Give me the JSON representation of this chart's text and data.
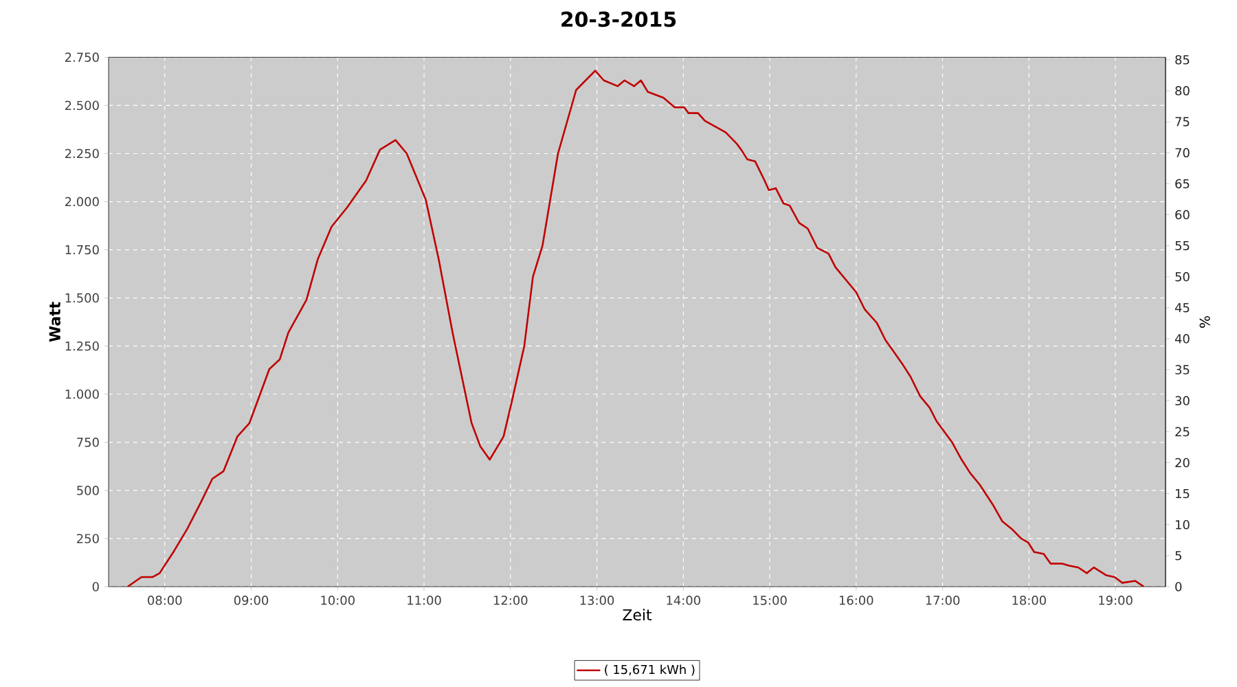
{
  "chart_data": {
    "type": "line",
    "title": "20-3-2015",
    "xlabel": "Zeit",
    "ylabel": "Watt",
    "y2label": "%",
    "xlim": [
      7.35,
      19.58
    ],
    "ylim": [
      0,
      2750
    ],
    "y2lim": [
      0,
      85.4
    ],
    "xticks": [
      {
        "value": 8,
        "label": "08:00"
      },
      {
        "value": 9,
        "label": "09:00"
      },
      {
        "value": 10,
        "label": "10:00"
      },
      {
        "value": 11,
        "label": "11:00"
      },
      {
        "value": 12,
        "label": "12:00"
      },
      {
        "value": 13,
        "label": "13:00"
      },
      {
        "value": 14,
        "label": "14:00"
      },
      {
        "value": 15,
        "label": "15:00"
      },
      {
        "value": 16,
        "label": "16:00"
      },
      {
        "value": 17,
        "label": "17:00"
      },
      {
        "value": 18,
        "label": "18:00"
      },
      {
        "value": 19,
        "label": "19:00"
      }
    ],
    "yticks": [
      0,
      250,
      500,
      750,
      {
        "value": 1000,
        "label": "1.000"
      },
      {
        "value": 1250,
        "label": "1.250"
      },
      {
        "value": 1500,
        "label": "1.500"
      },
      {
        "value": 1750,
        "label": "1.750"
      },
      {
        "value": 2000,
        "label": "2.000"
      },
      {
        "value": 2250,
        "label": "2.250"
      },
      {
        "value": 2500,
        "label": "2.500"
      },
      {
        "value": 2750,
        "label": "2.750"
      }
    ],
    "y2ticks": [
      0,
      5,
      10,
      15,
      20,
      25,
      30,
      35,
      40,
      45,
      50,
      55,
      60,
      65,
      70,
      75,
      80,
      85
    ],
    "grid": true,
    "legend": "bottom",
    "marker": "none",
    "line_style": "solid",
    "series": [
      {
        "name": "( 15,671 kWh )",
        "color": "#c00000",
        "x": [
          7.57,
          7.73,
          7.86,
          7.94,
          8.1,
          8.26,
          8.42,
          8.55,
          8.68,
          8.84,
          8.98,
          9.21,
          9.33,
          9.43,
          9.64,
          9.77,
          9.93,
          10.11,
          10.33,
          10.49,
          10.67,
          10.8,
          11.02,
          11.17,
          11.33,
          11.55,
          11.65,
          11.76,
          11.92,
          12.02,
          12.16,
          12.26,
          12.37,
          12.55,
          12.76,
          12.98,
          13.08,
          13.24,
          13.32,
          13.43,
          13.51,
          13.59,
          13.77,
          13.9,
          14.01,
          14.06,
          14.17,
          14.25,
          14.49,
          14.62,
          14.67,
          14.74,
          14.83,
          14.94,
          14.99,
          15.07,
          15.16,
          15.23,
          15.34,
          15.44,
          15.55,
          15.68,
          15.76,
          16.0,
          16.1,
          16.24,
          16.34,
          16.42,
          16.53,
          16.63,
          16.74,
          16.85,
          16.93,
          17.11,
          17.22,
          17.32,
          17.43,
          17.59,
          17.69,
          17.8,
          17.91,
          17.99,
          18.06,
          18.17,
          18.25,
          18.38,
          18.46,
          18.57,
          18.67,
          18.75,
          18.89,
          18.99,
          19.08,
          19.23,
          19.33
        ],
        "values": [
          0,
          50,
          50,
          70,
          180,
          300,
          440,
          560,
          600,
          780,
          850,
          1130,
          1180,
          1320,
          1490,
          1700,
          1870,
          1970,
          2110,
          2270,
          2320,
          2250,
          2010,
          1700,
          1320,
          850,
          730,
          660,
          780,
          970,
          1250,
          1610,
          1770,
          2250,
          2580,
          2680,
          2630,
          2600,
          2630,
          2600,
          2630,
          2570,
          2540,
          2490,
          2490,
          2460,
          2460,
          2420,
          2360,
          2300,
          2270,
          2220,
          2210,
          2110,
          2060,
          2070,
          1990,
          1980,
          1890,
          1860,
          1760,
          1730,
          1660,
          1530,
          1440,
          1370,
          1280,
          1230,
          1160,
          1090,
          990,
          930,
          860,
          750,
          660,
          590,
          530,
          420,
          340,
          300,
          250,
          230,
          180,
          170,
          120,
          120,
          110,
          100,
          70,
          100,
          60,
          50,
          20,
          30,
          0
        ]
      }
    ]
  }
}
